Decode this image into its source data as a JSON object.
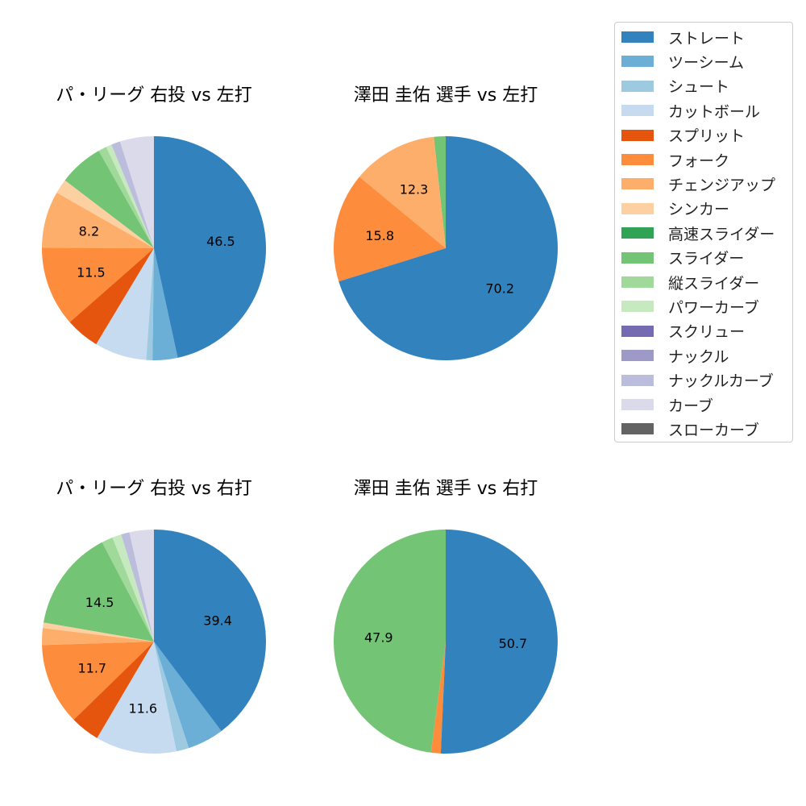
{
  "categories": [
    "ストレート",
    "ツーシーム",
    "シュート",
    "カットボール",
    "スプリット",
    "フォーク",
    "チェンジアップ",
    "シンカー",
    "高速スライダー",
    "スライダー",
    "縦スライダー",
    "パワーカーブ",
    "スクリュー",
    "ナックル",
    "ナックルカーブ",
    "カーブ",
    "スローカーブ"
  ],
  "colors": [
    "#3182bd",
    "#6baed6",
    "#9ecae1",
    "#c6dbef",
    "#e6550d",
    "#fd8d3c",
    "#fdae6b",
    "#fdd0a2",
    "#31a354",
    "#74c476",
    "#a1d99b",
    "#c7e9c0",
    "#756bb1",
    "#9e9ac8",
    "#bcbddc",
    "#dadaeb",
    "#636363"
  ],
  "chart_data": [
    {
      "type": "pie",
      "title": "パ・リーグ 右投 vs 左打",
      "values": [
        46.5,
        3.6,
        0.9,
        7.5,
        4.9,
        11.5,
        8.2,
        2.1,
        0.0,
        6.4,
        1.2,
        0.8,
        0.0,
        0.0,
        1.3,
        4.9,
        0.0
      ],
      "labels": [
        "46.5",
        "",
        "",
        "",
        "",
        "11.5",
        "8.2",
        "",
        "",
        "",
        "",
        "",
        "",
        "",
        "",
        "",
        ""
      ]
    },
    {
      "type": "pie",
      "title": "澤田 圭佑 選手 vs 左打",
      "values": [
        70.2,
        0,
        0,
        0,
        0,
        15.8,
        12.3,
        0,
        0,
        1.7,
        0,
        0,
        0,
        0,
        0,
        0,
        0
      ],
      "labels": [
        "70.2",
        "",
        "",
        "",
        "",
        "15.8",
        "12.3",
        "",
        "",
        "",
        "",
        "",
        "",
        "",
        "",
        "",
        ""
      ]
    },
    {
      "type": "pie",
      "title": "パ・リーグ 右投 vs 右打",
      "values": [
        39.4,
        5.2,
        1.8,
        11.6,
        4.2,
        11.7,
        2.4,
        0.8,
        0.0,
        14.5,
        1.6,
        1.3,
        0.0,
        0.0,
        1.2,
        3.5,
        0.0
      ],
      "labels": [
        "39.4",
        "",
        "",
        "11.6",
        "",
        "11.7",
        "",
        "",
        "",
        "14.5",
        "",
        "",
        "",
        "",
        "",
        "",
        ""
      ]
    },
    {
      "type": "pie",
      "title": "澤田 圭佑 選手 vs 右打",
      "values": [
        50.7,
        0,
        0,
        0,
        0,
        1.4,
        0,
        0,
        0,
        47.9,
        0,
        0,
        0,
        0,
        0,
        0,
        0
      ],
      "labels": [
        "50.7",
        "",
        "",
        "",
        "",
        "",
        "",
        "",
        "",
        "47.9",
        "",
        "",
        "",
        "",
        "",
        "",
        ""
      ]
    }
  ]
}
